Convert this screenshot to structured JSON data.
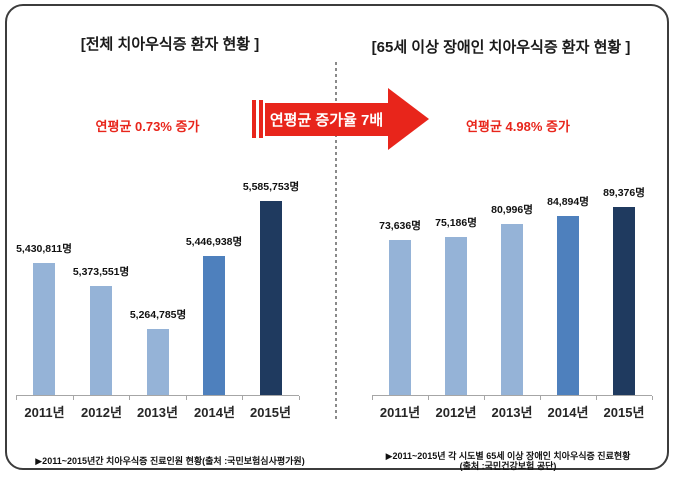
{
  "left_panel": {
    "title": "[전체 치아우식증 환자 현황 ]",
    "highlight": "연평균 0.73% 증가",
    "source": "▶2011~2015년간 치아우식증 진료인원 현황(출처 :국민보험심사평가원)"
  },
  "right_panel": {
    "title": "[65세 이상 장애인 치아우식증 환자 현황 ]",
    "highlight": "연평균 4.98% 증가",
    "source_line1": "▶2011~2015년 각 시도별 65세 이상 장애인 치아우식증 진료현황",
    "source_line2": "(출처 :국민건강보험 공단)"
  },
  "arrow": {
    "label": "연평균 증가율 7배",
    "color": "#e8251b"
  },
  "colors": {
    "bar_light": "#95b3d7",
    "bar_mid": "#4e80bd",
    "bar_dark": "#1f3a5f",
    "red": "#e8251b",
    "axis": "#a6a6a6",
    "frame_border": "#3c3c3c"
  },
  "chart_data": [
    {
      "type": "bar",
      "title": "[전체 치아우식증 환자 현황 ]",
      "categories": [
        "2011년",
        "2012년",
        "2013년",
        "2014년",
        "2015년"
      ],
      "values": [
        5430811,
        5373551,
        5264785,
        5446938,
        5585753
      ],
      "labels": [
        "5,430,811명",
        "5,373,551명",
        "5,264,785명",
        "5,446,938명",
        "5,585,753명"
      ],
      "bar_colors": [
        "#95b3d7",
        "#95b3d7",
        "#95b3d7",
        "#4e80bd",
        "#1f3a5f"
      ],
      "ylim": [
        5100000,
        5600000
      ],
      "grid": false,
      "legend": "none",
      "annotation": "연평균 0.73% 증가"
    },
    {
      "type": "bar",
      "title": "[65세 이상 장애인 치아우식증 환자 현황 ]",
      "categories": [
        "2011년",
        "2012년",
        "2013년",
        "2014년",
        "2015년"
      ],
      "values": [
        73636,
        75186,
        80996,
        84894,
        89376
      ],
      "labels": [
        "73,636명",
        "75,186명",
        "80,996명",
        "84,894명",
        "89,376명"
      ],
      "bar_colors": [
        "#95b3d7",
        "#95b3d7",
        "#95b3d7",
        "#4e80bd",
        "#1f3a5f"
      ],
      "ylim": [
        0,
        95000
      ],
      "grid": false,
      "legend": "none",
      "annotation": "연평균 4.98% 증가"
    }
  ]
}
